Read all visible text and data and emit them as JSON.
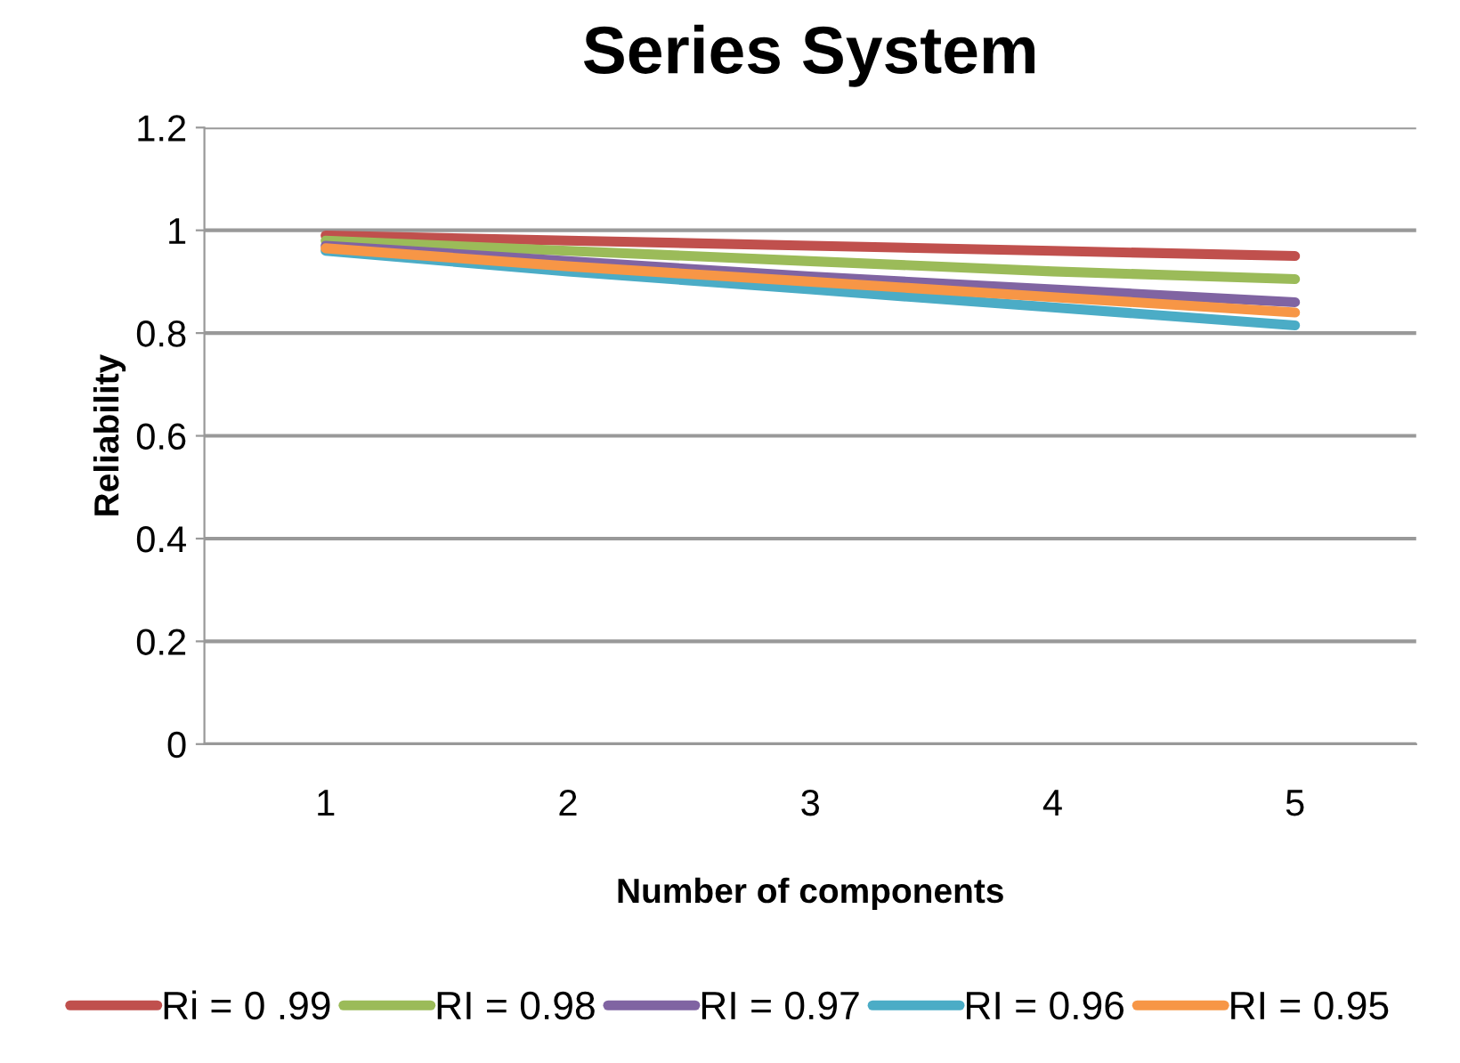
{
  "chart_data": {
    "type": "line",
    "title": "Series System",
    "xlabel": "Number of components",
    "ylabel": "Reliability",
    "categories": [
      "1",
      "2",
      "3",
      "4",
      "5"
    ],
    "ylim": [
      0,
      1.2
    ],
    "yticks": [
      0,
      0.2,
      0.4,
      0.6,
      0.8,
      1,
      1.2
    ],
    "grid": "y",
    "legend": "bottom",
    "marker": "none",
    "line_style": "solid",
    "series": [
      {
        "name": "Ri = 0 .99",
        "color": "#c0504d",
        "values": [
          0.99,
          0.98,
          0.97,
          0.96,
          0.95
        ]
      },
      {
        "name": "RI = 0.98",
        "color": "#9bbb59",
        "values": [
          0.98,
          0.96,
          0.94,
          0.92,
          0.905
        ]
      },
      {
        "name": "RI = 0.97",
        "color": "#8064a2",
        "values": [
          0.97,
          0.94,
          0.91,
          0.885,
          0.86
        ]
      },
      {
        "name": "RI = 0.96",
        "color": "#4bacc6",
        "values": [
          0.96,
          0.92,
          0.885,
          0.85,
          0.815
        ]
      },
      {
        "name": "RI = 0.95",
        "color": "#f79646",
        "values": [
          0.965,
          0.93,
          0.9,
          0.87,
          0.84
        ]
      }
    ]
  }
}
